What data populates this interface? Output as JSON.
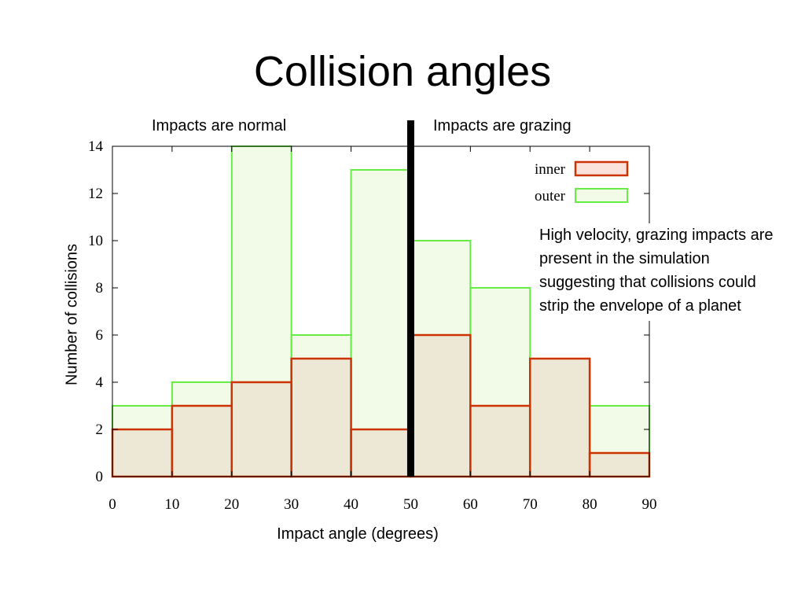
{
  "title": "Collision angles",
  "region_labels": {
    "left": "Impacts are normal",
    "right": "Impacts are grazing"
  },
  "annotation": "High velocity, grazing impacts are present in the simulation suggesting that collisions could strip the envelope of a planet",
  "colors": {
    "inner_stroke": "#cc3300",
    "inner_fill": "#fbe3dc",
    "outer_stroke": "#66ee44",
    "outer_fill": "#f2fbe8",
    "overlap_fill": "#ede8d5",
    "divider": "#000000"
  },
  "chart_data": {
    "type": "bar",
    "subtype": "histogram-overlay",
    "bin_edges": [
      0,
      10,
      20,
      30,
      40,
      50,
      60,
      70,
      80,
      90
    ],
    "series": [
      {
        "name": "inner",
        "values": [
          2,
          3,
          4,
          5,
          2,
          6,
          3,
          5,
          1
        ]
      },
      {
        "name": "outer",
        "values": [
          3,
          4,
          14,
          6,
          13,
          10,
          8,
          5,
          3
        ]
      }
    ],
    "xlabel": "Impact angle (degrees)",
    "ylabel": "Number of collisions",
    "xlim": [
      0,
      90
    ],
    "ylim": [
      0,
      14
    ],
    "x_ticks": [
      0,
      10,
      20,
      30,
      40,
      50,
      60,
      70,
      80,
      90
    ],
    "y_ticks": [
      0,
      2,
      4,
      6,
      8,
      10,
      12,
      14
    ],
    "divider_x": 50,
    "legend_position": "top-right",
    "grid": false
  }
}
